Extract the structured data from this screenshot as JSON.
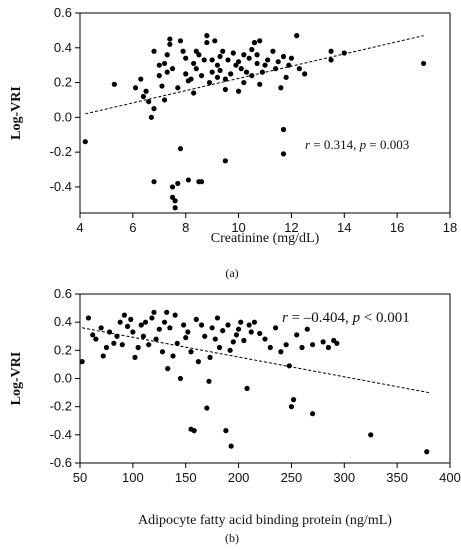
{
  "chart_data": [
    {
      "type": "scatter",
      "panel_label": "(a)",
      "xlabel": "Creatinine (mg/dL)",
      "ylabel": "Log-VRI",
      "xlim": [
        4,
        18
      ],
      "ylim": [
        -0.55,
        0.6
      ],
      "x_ticks": [
        4,
        6,
        8,
        10,
        12,
        14,
        16,
        18
      ],
      "y_ticks": [
        -0.4,
        -0.2,
        0.0,
        0.2,
        0.4,
        0.6
      ],
      "y_tick_labels": [
        "-0.4",
        "-0.2",
        "0.0",
        "0.2",
        "0.4",
        "0.6"
      ],
      "annotation": {
        "r_label": "r",
        "r_value": "= 0.314,",
        "p_label": "p",
        "p_value": "= 0.003"
      },
      "trendline": {
        "x": [
          4.2,
          17.0
        ],
        "y": [
          0.02,
          0.47
        ]
      },
      "points": [
        [
          4.2,
          -0.14
        ],
        [
          5.3,
          0.19
        ],
        [
          6.1,
          0.17
        ],
        [
          6.3,
          0.22
        ],
        [
          6.4,
          0.12
        ],
        [
          6.5,
          0.15
        ],
        [
          6.6,
          0.09
        ],
        [
          6.7,
          0.0
        ],
        [
          6.8,
          0.05
        ],
        [
          6.8,
          0.38
        ],
        [
          6.8,
          -0.37
        ],
        [
          7.0,
          0.24
        ],
        [
          7.0,
          0.3
        ],
        [
          7.1,
          0.18
        ],
        [
          7.2,
          0.31
        ],
        [
          7.2,
          0.1
        ],
        [
          7.3,
          0.36
        ],
        [
          7.3,
          0.26
        ],
        [
          7.4,
          0.45
        ],
        [
          7.4,
          0.42
        ],
        [
          7.5,
          0.28
        ],
        [
          7.5,
          -0.4
        ],
        [
          7.5,
          -0.46
        ],
        [
          7.6,
          -0.48
        ],
        [
          7.6,
          -0.52
        ],
        [
          7.7,
          0.17
        ],
        [
          7.7,
          -0.38
        ],
        [
          7.8,
          0.44
        ],
        [
          7.8,
          -0.18
        ],
        [
          7.9,
          0.38
        ],
        [
          8.0,
          0.34
        ],
        [
          8.0,
          0.25
        ],
        [
          8.1,
          0.21
        ],
        [
          8.1,
          -0.36
        ],
        [
          8.2,
          0.22
        ],
        [
          8.3,
          0.31
        ],
        [
          8.3,
          0.14
        ],
        [
          8.4,
          0.38
        ],
        [
          8.4,
          0.28
        ],
        [
          8.5,
          0.36
        ],
        [
          8.5,
          -0.37
        ],
        [
          8.6,
          0.24
        ],
        [
          8.6,
          -0.37
        ],
        [
          8.7,
          0.33
        ],
        [
          8.8,
          0.47
        ],
        [
          8.8,
          0.43
        ],
        [
          8.9,
          0.2
        ],
        [
          9.0,
          0.33
        ],
        [
          9.0,
          0.26
        ],
        [
          9.1,
          0.44
        ],
        [
          9.2,
          0.3
        ],
        [
          9.2,
          0.23
        ],
        [
          9.3,
          0.35
        ],
        [
          9.3,
          0.27
        ],
        [
          9.4,
          0.38
        ],
        [
          9.5,
          0.22
        ],
        [
          9.5,
          0.16
        ],
        [
          9.5,
          -0.25
        ],
        [
          9.6,
          0.33
        ],
        [
          9.7,
          0.25
        ],
        [
          9.8,
          0.37
        ],
        [
          9.9,
          0.3
        ],
        [
          10.0,
          0.32
        ],
        [
          10.0,
          0.15
        ],
        [
          10.1,
          0.28
        ],
        [
          10.2,
          0.36
        ],
        [
          10.2,
          0.2
        ],
        [
          10.3,
          0.26
        ],
        [
          10.4,
          0.34
        ],
        [
          10.5,
          0.39
        ],
        [
          10.5,
          0.24
        ],
        [
          10.6,
          0.43
        ],
        [
          10.6,
          0.43
        ],
        [
          10.7,
          0.36
        ],
        [
          10.7,
          0.31
        ],
        [
          10.8,
          0.44
        ],
        [
          10.8,
          0.19
        ],
        [
          10.9,
          0.26
        ],
        [
          11.0,
          0.3
        ],
        [
          11.1,
          0.33
        ],
        [
          11.3,
          0.38
        ],
        [
          11.4,
          0.28
        ],
        [
          11.5,
          0.32
        ],
        [
          11.6,
          0.17
        ],
        [
          11.7,
          0.35
        ],
        [
          11.7,
          -0.07
        ],
        [
          11.7,
          -0.21
        ],
        [
          11.8,
          0.23
        ],
        [
          11.9,
          0.3
        ],
        [
          12.0,
          0.34
        ],
        [
          12.2,
          0.47
        ],
        [
          12.3,
          0.28
        ],
        [
          12.5,
          0.25
        ],
        [
          13.5,
          0.38
        ],
        [
          13.5,
          0.33
        ],
        [
          14.0,
          0.37
        ],
        [
          17.0,
          0.31
        ]
      ]
    },
    {
      "type": "scatter",
      "panel_label": "(b)",
      "xlabel": "Adipocyte fatty acid binding protein (ng/mL)",
      "ylabel": "Log-VRI",
      "xlim": [
        50,
        400
      ],
      "ylim": [
        -0.6,
        0.6
      ],
      "x_ticks": [
        50,
        100,
        150,
        200,
        250,
        300,
        350,
        400
      ],
      "y_ticks": [
        -0.6,
        -0.4,
        -0.2,
        0.0,
        0.2,
        0.4,
        0.6
      ],
      "y_tick_labels": [
        "-0.6",
        "-0.4",
        "-0.2",
        "0.0",
        "0.2",
        "0.4",
        "0.6"
      ],
      "annotation": {
        "r_label": "r",
        "r_value": "= –0.404,",
        "p_label": "p",
        "p_value": "< 0.001"
      },
      "trendline": {
        "x": [
          52,
          380
        ],
        "y": [
          0.36,
          -0.1
        ]
      },
      "points": [
        [
          52,
          0.12
        ],
        [
          58,
          0.43
        ],
        [
          62,
          0.31
        ],
        [
          65,
          0.28
        ],
        [
          70,
          0.36
        ],
        [
          72,
          0.16
        ],
        [
          75,
          0.22
        ],
        [
          78,
          0.33
        ],
        [
          82,
          0.25
        ],
        [
          85,
          0.3
        ],
        [
          88,
          0.4
        ],
        [
          90,
          0.24
        ],
        [
          92,
          0.45
        ],
        [
          95,
          0.37
        ],
        [
          98,
          0.42
        ],
        [
          100,
          0.33
        ],
        [
          102,
          0.15
        ],
        [
          105,
          0.22
        ],
        [
          108,
          0.38
        ],
        [
          110,
          0.3
        ],
        [
          112,
          0.4
        ],
        [
          115,
          0.24
        ],
        [
          118,
          0.43
        ],
        [
          120,
          0.47
        ],
        [
          122,
          0.28
        ],
        [
          125,
          0.35
        ],
        [
          128,
          0.19
        ],
        [
          130,
          0.4
        ],
        [
          132,
          0.47
        ],
        [
          133,
          0.07
        ],
        [
          135,
          0.36
        ],
        [
          138,
          0.16
        ],
        [
          140,
          0.45
        ],
        [
          142,
          0.25
        ],
        [
          145,
          0.0
        ],
        [
          148,
          0.38
        ],
        [
          150,
          0.29
        ],
        [
          152,
          0.33
        ],
        [
          155,
          0.19
        ],
        [
          155,
          -0.36
        ],
        [
          158,
          -0.37
        ],
        [
          160,
          0.42
        ],
        [
          162,
          0.12
        ],
        [
          165,
          0.38
        ],
        [
          168,
          0.3
        ],
        [
          170,
          -0.21
        ],
        [
          172,
          -0.02
        ],
        [
          173,
          0.15
        ],
        [
          175,
          0.36
        ],
        [
          178,
          0.28
        ],
        [
          180,
          0.43
        ],
        [
          182,
          0.22
        ],
        [
          185,
          0.34
        ],
        [
          188,
          -0.37
        ],
        [
          190,
          0.38
        ],
        [
          192,
          0.2
        ],
        [
          193,
          -0.48
        ],
        [
          195,
          0.26
        ],
        [
          198,
          0.31
        ],
        [
          200,
          0.35
        ],
        [
          202,
          0.4
        ],
        [
          205,
          0.27
        ],
        [
          208,
          -0.07
        ],
        [
          210,
          0.38
        ],
        [
          212,
          0.33
        ],
        [
          215,
          0.4
        ],
        [
          220,
          0.32
        ],
        [
          225,
          0.28
        ],
        [
          230,
          0.22
        ],
        [
          235,
          0.36
        ],
        [
          240,
          0.19
        ],
        [
          245,
          0.24
        ],
        [
          248,
          0.09
        ],
        [
          250,
          -0.2
        ],
        [
          252,
          -0.15
        ],
        [
          255,
          0.31
        ],
        [
          260,
          0.22
        ],
        [
          265,
          0.35
        ],
        [
          270,
          0.24
        ],
        [
          270,
          -0.25
        ],
        [
          280,
          0.26
        ],
        [
          285,
          0.22
        ],
        [
          290,
          0.27
        ],
        [
          293,
          0.25
        ],
        [
          325,
          -0.4
        ],
        [
          378,
          -0.52
        ]
      ]
    }
  ]
}
